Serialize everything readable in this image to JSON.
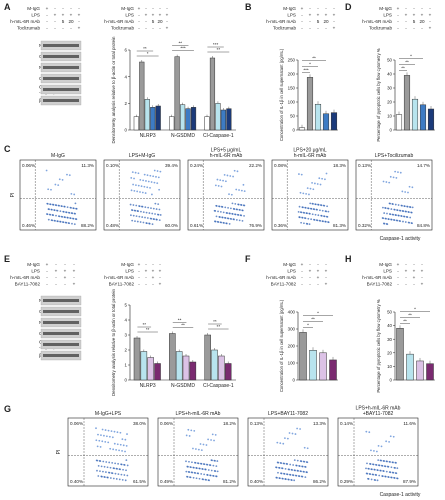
{
  "panel_letters": [
    "A",
    "B",
    "C",
    "D",
    "E",
    "F",
    "G",
    "H"
  ],
  "signs_bar": [
    "+",
    "-"
  ],
  "symbols": {
    "plus": "+",
    "minus": "-"
  },
  "panelA": {
    "treat_labels": [
      "M-IgG",
      "LPS",
      "h-mIL-6R mAb",
      "Toclizumab"
    ],
    "treat_cols": [
      [
        "+",
        "-",
        "-",
        "-",
        "-"
      ],
      [
        "-",
        "+",
        "+",
        "+",
        "+"
      ],
      [
        "-",
        "-",
        "5",
        "20",
        "-"
      ],
      [
        "-",
        "-",
        "-",
        "-",
        "+"
      ]
    ],
    "blot_labels": [
      "NLRP3",
      "GSDMD",
      "N-GSDMD",
      "Caspase-1",
      "Cl-Caspase\n-1 (p20)",
      "β-actin"
    ]
  },
  "panelE": {
    "treat_labels": [
      "M-IgG",
      "LPS",
      "h-mIL-6R mAb",
      "BAY11-7082"
    ],
    "treat_cols": [
      [
        "+",
        "-",
        "-",
        "-"
      ],
      [
        "-",
        "+",
        "+",
        "+"
      ],
      [
        "-",
        "-",
        "+",
        "-"
      ],
      [
        "-",
        "-",
        "-",
        "+"
      ]
    ],
    "blot_labels": [
      "NLRP3",
      "GSDMD",
      "N-GSDMD",
      "Caspase-1",
      "Cl-Caspase\n-1 (p20)",
      "β-actin"
    ]
  },
  "chart_data": [
    {
      "id": "A",
      "type": "bar",
      "treat_labels": [
        "M-IgG",
        "LPS",
        "h-mIL-6R mAb",
        "Toclizumab"
      ],
      "treat_cols": [
        [
          "+",
          "-",
          "-",
          "-",
          "-"
        ],
        [
          "-",
          "+",
          "+",
          "+",
          "+"
        ],
        [
          "-",
          "-",
          "5",
          "20",
          "-"
        ],
        [
          "-",
          "-",
          "-",
          "-",
          "+"
        ]
      ],
      "ylabel": "Densitometry analysis relative to β-actin or total protein",
      "categories": [
        "NLRP3",
        "N-GSDMD",
        "Cl-Caspase-1"
      ],
      "ylim": [
        0,
        6
      ],
      "yticks": [
        "0",
        "2",
        "4",
        "6"
      ],
      "series": [
        {
          "values": [
            1.0,
            1.0,
            1.0
          ]
        },
        {
          "values": [
            5.1,
            5.5,
            5.4
          ]
        },
        {
          "values": [
            2.3,
            1.9,
            2.0
          ]
        },
        {
          "values": [
            1.7,
            1.6,
            1.5
          ]
        },
        {
          "values": [
            1.8,
            1.7,
            1.6
          ]
        }
      ],
      "colors": [
        "#ffffff",
        "#9a9a9a",
        "#b8e4ee",
        "#3d7bc4",
        "#1b3a7a"
      ],
      "sig": [
        "*",
        "**",
        "***",
        "**",
        "**",
        "***"
      ]
    },
    {
      "id": "B",
      "type": "bar",
      "treat_labels": [
        "M-IgG",
        "LPS",
        "h-mIL-6R mAb",
        "Toclizumab"
      ],
      "treat_cols": [
        [
          "+",
          "-",
          "-",
          "-",
          "-"
        ],
        [
          "-",
          "+",
          "+",
          "+",
          "+"
        ],
        [
          "-",
          "-",
          "5",
          "20",
          "-"
        ],
        [
          "-",
          "-",
          "-",
          "-",
          "+"
        ]
      ],
      "ylabel": "Concentration of IL-1β in cell supernatant (pg/mL)",
      "ylim": [
        0,
        250
      ],
      "yticks": [
        "0",
        "50",
        "100",
        "150",
        "200",
        "250"
      ],
      "values": [
        8,
        188,
        92,
        58,
        62
      ],
      "colors": [
        "#ffffff",
        "#9a9a9a",
        "#b8e4ee",
        "#3d7bc4",
        "#1b3a7a"
      ],
      "sig": [
        "***",
        "*",
        "**"
      ]
    },
    {
      "id": "D",
      "type": "bar",
      "treat_labels": [
        "M-IgG",
        "LPS",
        "h-mIL-6R mAb",
        "Toclizumab"
      ],
      "treat_cols": [
        [
          "+",
          "-",
          "-",
          "-",
          "-"
        ],
        [
          "-",
          "+",
          "+",
          "+",
          "+"
        ],
        [
          "-",
          "-",
          "5",
          "20",
          "-"
        ],
        [
          "-",
          "-",
          "-",
          "-",
          "+"
        ]
      ],
      "ylabel": "Percentage of pyroptotic cells by flow cytometry %",
      "ylim": [
        0,
        50
      ],
      "yticks": [
        "0",
        "10",
        "20",
        "30",
        "40",
        "50"
      ],
      "values": [
        11,
        39,
        22,
        18,
        15
      ],
      "colors": [
        "#ffffff",
        "#9a9a9a",
        "#b8e4ee",
        "#3d7bc4",
        "#1b3a7a"
      ],
      "sig": [
        "**",
        "**",
        "*"
      ]
    },
    {
      "id": "E",
      "type": "bar",
      "treat_labels": [
        "M-IgG",
        "LPS",
        "h-mIL-6R mAb",
        "BAY11-7082"
      ],
      "treat_cols": [
        [
          "+",
          "-",
          "-",
          "-"
        ],
        [
          "-",
          "+",
          "+",
          "+"
        ],
        [
          "-",
          "-",
          "+",
          "-"
        ],
        [
          "-",
          "-",
          "-",
          "+"
        ]
      ],
      "ylabel": "Densitometry analysis relative to β-actin or total protein",
      "categories": [
        "NLRP3",
        "N-GSDMD",
        "Cl-Caspase-1"
      ],
      "ylim": [
        0,
        5
      ],
      "yticks": [
        "0",
        "1",
        "2",
        "3",
        "4",
        "5"
      ],
      "series": [
        {
          "values": [
            2.8,
            3.1,
            3.0
          ]
        },
        {
          "values": [
            1.9,
            1.9,
            2.0
          ]
        },
        {
          "values": [
            1.5,
            1.6,
            1.6
          ]
        },
        {
          "values": [
            1.1,
            1.2,
            1.1
          ]
        }
      ],
      "colors": [
        "#9a9a9a",
        "#b8e4ee",
        "#dcc2e6",
        "#7a2a70"
      ],
      "sig": [
        "**",
        "**",
        "**",
        "**",
        "**",
        "**"
      ]
    },
    {
      "id": "F",
      "type": "bar",
      "treat_labels": [
        "M-IgG",
        "LPS",
        "h-mIL-6R mAb",
        "BAY11-7082"
      ],
      "treat_cols": [
        [
          "+",
          "-",
          "-",
          "-"
        ],
        [
          "-",
          "+",
          "+",
          "+"
        ],
        [
          "-",
          "-",
          "+",
          "-"
        ],
        [
          "-",
          "-",
          "-",
          "+"
        ]
      ],
      "ylabel": "Concentration of IL-1β in cell supernatant (pg/mL)",
      "ylim": [
        0,
        400
      ],
      "yticks": [
        "0",
        "100",
        "200",
        "300",
        "400"
      ],
      "values": [
        280,
        175,
        160,
        118
      ],
      "colors": [
        "#9a9a9a",
        "#b8e4ee",
        "#dcc2e6",
        "#7a2a70"
      ],
      "sig": [
        "*",
        "**",
        "*"
      ]
    },
    {
      "id": "H",
      "type": "bar",
      "treat_labels": [
        "M-IgG",
        "LPS",
        "h-mIL-6R mAb",
        "BAY11-7082"
      ],
      "treat_cols": [
        [
          "+",
          "-",
          "-",
          "-"
        ],
        [
          "-",
          "+",
          "+",
          "+"
        ],
        [
          "-",
          "-",
          "+",
          "-"
        ],
        [
          "-",
          "-",
          "-",
          "+"
        ]
      ],
      "ylabel": "Percentage of pyroptotic cells by flow cytometry %",
      "ylim": [
        0,
        50
      ],
      "yticks": [
        "0",
        "10",
        "20",
        "30",
        "40",
        "50"
      ],
      "values": [
        38,
        19,
        14,
        12
      ],
      "colors": [
        "#9a9a9a",
        "#b8e4ee",
        "#dcc2e6",
        "#7a2a70"
      ],
      "sig": [
        "**",
        "**",
        "*"
      ]
    },
    {
      "id": "C",
      "type": "scatter",
      "ylabel": "PI",
      "xlabel": "Caspase-1 activity",
      "plots": [
        {
          "title": "M-IgG",
          "q": [
            "0.06%",
            "11.3%",
            "0.46%",
            "88.2%"
          ]
        },
        {
          "title": "LPS+M-IgG",
          "q": [
            "0.10%",
            "39.4%",
            "0.48%",
            "60.0%"
          ]
        },
        {
          "title": "LPS+5 μg/mL\nh-mIL-6R mAb",
          "q": [
            "0.24%",
            "22.2%",
            "0.61%",
            "76.9%"
          ]
        },
        {
          "title": "LPS+20 μg/mL\nh-mIL-6R mAb",
          "q": [
            "0.08%",
            "18.3%",
            "0.36%",
            "81.3%"
          ]
        },
        {
          "title": "LPS+Tocilizumab",
          "q": [
            "0.13%",
            "14.7%",
            "0.32%",
            "84.8%"
          ]
        }
      ]
    },
    {
      "id": "G",
      "type": "scatter",
      "ylabel": "PI",
      "xlabel": "Caspase-1 activity",
      "plots": [
        {
          "title": "M-IgG+LPS",
          "q": [
            "0.06%",
            "38.0%",
            "0.40%",
            "61.5%"
          ]
        },
        {
          "title": "LPS+h-mIL-6R mAb",
          "q": [
            "0.06%",
            "18.2%",
            "0.49%",
            "81.2%"
          ]
        },
        {
          "title": "LPS+BAY11-7082",
          "q": [
            "0.13%",
            "13.3%",
            "0.40%",
            "86.2%"
          ]
        },
        {
          "title": "LPS+h-mIL-6R mAb\n+BAY11-7082",
          "q": [
            "0.14%",
            "11.6%",
            "0.29%",
            "87.9%"
          ]
        }
      ]
    }
  ]
}
